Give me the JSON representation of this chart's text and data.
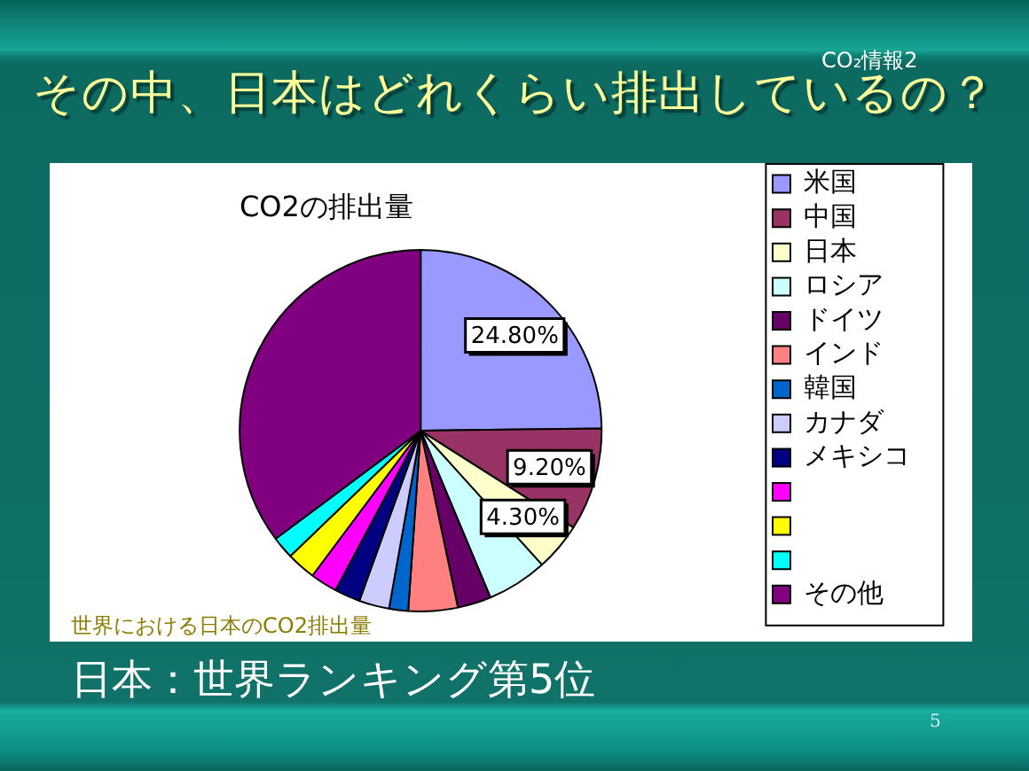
{
  "chart_data": {
    "type": "pie",
    "title": "その中、日本はどれくらい排出しているの？",
    "subtitle": "CO2の排出量",
    "categories": [
      "米国",
      "中国",
      "日本",
      "ロシア",
      "ドイツ",
      "インド",
      "韓国",
      "カナダ",
      "メキシコ",
      null,
      null,
      null,
      "その他"
    ],
    "values": [
      24.8,
      9.2,
      4.3,
      5.4,
      3,
      4.4,
      1.7,
      2.7,
      2.3,
      2.4,
      2.6,
      2.0,
      35.2
    ],
    "colors": [
      "#9999ff",
      "#993366",
      "#ffffcc",
      "#ccffff",
      "#660066",
      "#ff8080",
      "#0066cc",
      "#ccccff",
      "#000080",
      "#ff00ff",
      "#ffff00",
      "#00ffff",
      "#800080"
    ],
    "value_labels": [
      "24.80%",
      "9.20%",
      "4.30%",
      null,
      null,
      null,
      null,
      null,
      null,
      null,
      null,
      null,
      null
    ],
    "legend": "right",
    "annotations": [
      "CO₂情報2",
      "世界における日本のCO2排出量",
      "日本：世界ランキング第5位",
      "5"
    ]
  }
}
